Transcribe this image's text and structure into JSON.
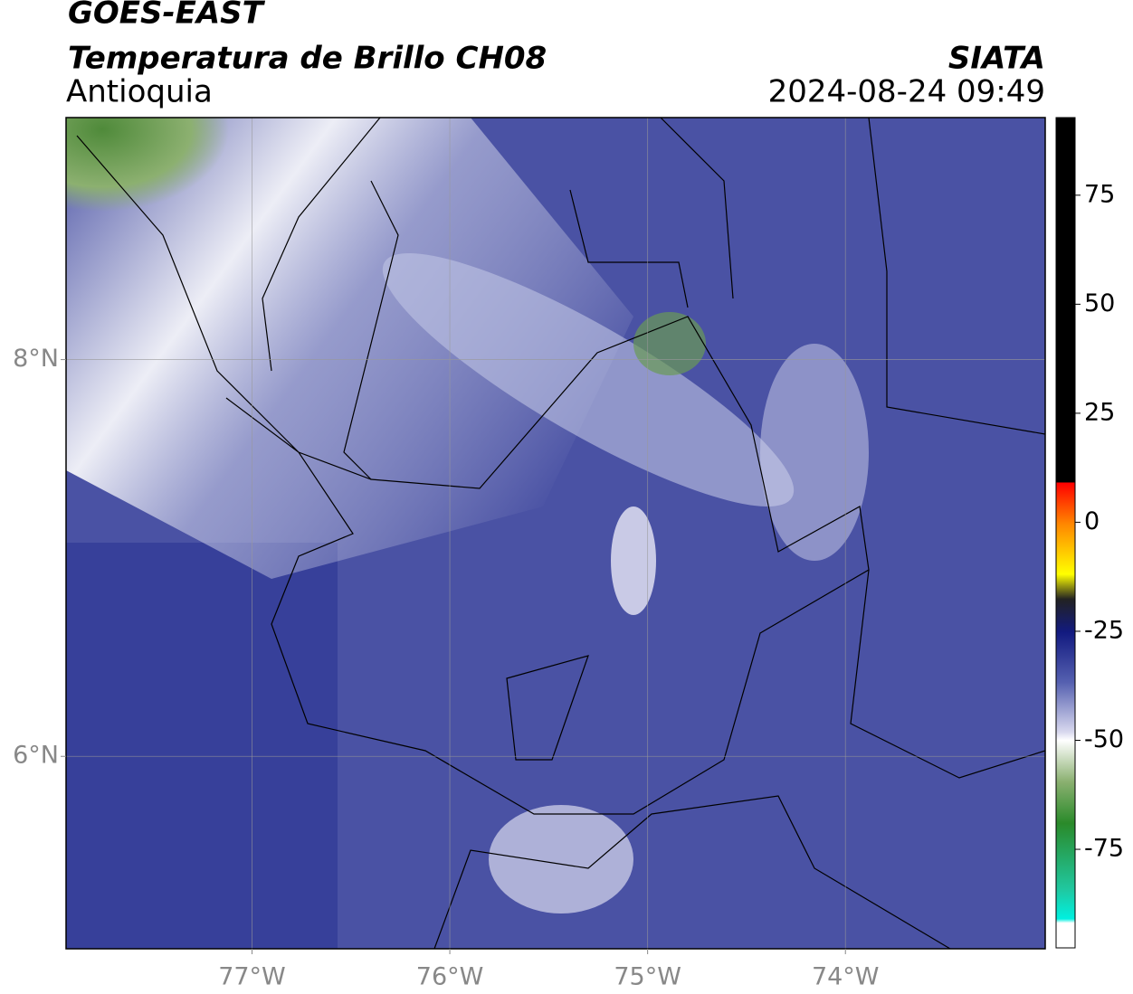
{
  "header": {
    "satellite": "GOES-EAST",
    "product": "Temperatura de Brillo CH08",
    "region": "Antioquia",
    "source": "SIATA",
    "datetime": "2024-08-24 09:49"
  },
  "map": {
    "xlim": [
      -77.94,
      -72.99
    ],
    "ylim": [
      5.03,
      9.22
    ],
    "xticks": [
      {
        "value": -77,
        "label": "77°W"
      },
      {
        "value": -76,
        "label": "76°W"
      },
      {
        "value": -75,
        "label": "75°W"
      },
      {
        "value": -74,
        "label": "74°W"
      }
    ],
    "yticks": [
      {
        "value": 8,
        "label": "8°N"
      },
      {
        "value": 6,
        "label": "6°N"
      }
    ],
    "grid": true
  },
  "colorbar": {
    "lim": [
      -97.6,
      92.8
    ],
    "ticks": [
      75,
      50,
      25,
      0,
      -25,
      -50,
      -75
    ]
  }
}
